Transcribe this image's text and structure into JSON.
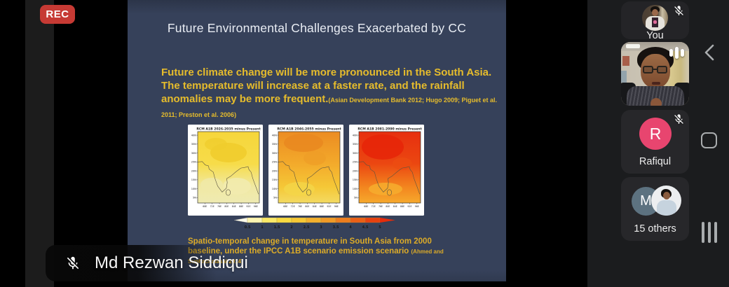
{
  "status": {
    "rec_label": "REC"
  },
  "slide": {
    "title": "Future Environmental Challenges Exacerbated by CC",
    "body_text": "Future climate change will be more pronounced in the South Asia. The temperature will increase at a faster rate, and the rainfall anomalies may be more frequent.",
    "body_citation": "(Asian Development Bank 2012; Hugo 2009; Piguet et al. 2011; Preston et al. 2006)",
    "caption": {
      "line1": "Spatio-temporal change in temperature in South Asia from 2000",
      "line2": "baseline, under the IPCC A1B scenario emission scenario ",
      "cite1": "(Ahmed and",
      "cite2": "Suphachalasai 2014)"
    },
    "figure": {
      "type": "heatmap",
      "maps": [
        {
          "title": "RCM A1B 2026-2035 minus Present",
          "gradient": [
            "#f6d63b",
            "#f7dc49",
            "#f0e9a4",
            "#efeab2"
          ]
        },
        {
          "title": "RCM A1B 2046-2055 minus Present",
          "gradient": [
            "#ec8c22",
            "#f3aa2b",
            "#f5c837",
            "#f3da62"
          ]
        },
        {
          "title": "RCM A1B 2081-2090 minus Present",
          "gradient": [
            "#e72f0f",
            "#eb4711",
            "#f3861f",
            "#f6a92c"
          ]
        }
      ],
      "lat_ticks": [
        "40N",
        "35N",
        "30N",
        "25N",
        "20N",
        "15N",
        "10N",
        "5N"
      ],
      "lon_ticks": [
        "68E",
        "72E",
        "76E",
        "80E",
        "84E",
        "88E",
        "92E",
        "96E"
      ],
      "colorbar": {
        "ticks": [
          "0.5",
          "1",
          "1.5",
          "2",
          "2.5",
          "3",
          "3.5",
          "4",
          "4.5",
          "5"
        ],
        "segment_colors": [
          "#fcf5b2",
          "#fae968",
          "#f8da41",
          "#f6c835",
          "#f3b02d",
          "#f09a27",
          "#ed7d1e",
          "#ea5f16",
          "#e7410f"
        ],
        "left_arrow_color": "#fdfbea",
        "right_arrow_color": "#e62c0b"
      }
    }
  },
  "sidebar": {
    "tiles": [
      {
        "label": "You",
        "muted": true
      },
      {
        "label": "",
        "speaking": true
      },
      {
        "label": "Rafiqul",
        "initial": "R",
        "muted": true,
        "avatar_color": "#e8456f"
      },
      {
        "label": "15 others",
        "initial": "M",
        "avatar_color": "#5d7280"
      }
    ]
  },
  "bottom_bar": {
    "speaker_name": "Md Rezwan Siddiqui",
    "muted": true
  },
  "colors": {
    "rec_red": "#c63a34",
    "slide_bg": "#36415a",
    "slide_text_yellow": "#e6bc2c",
    "caption_yellow": "#dcab28",
    "rafiqul_avatar": "#e8456f",
    "m_avatar": "#5d7280"
  }
}
